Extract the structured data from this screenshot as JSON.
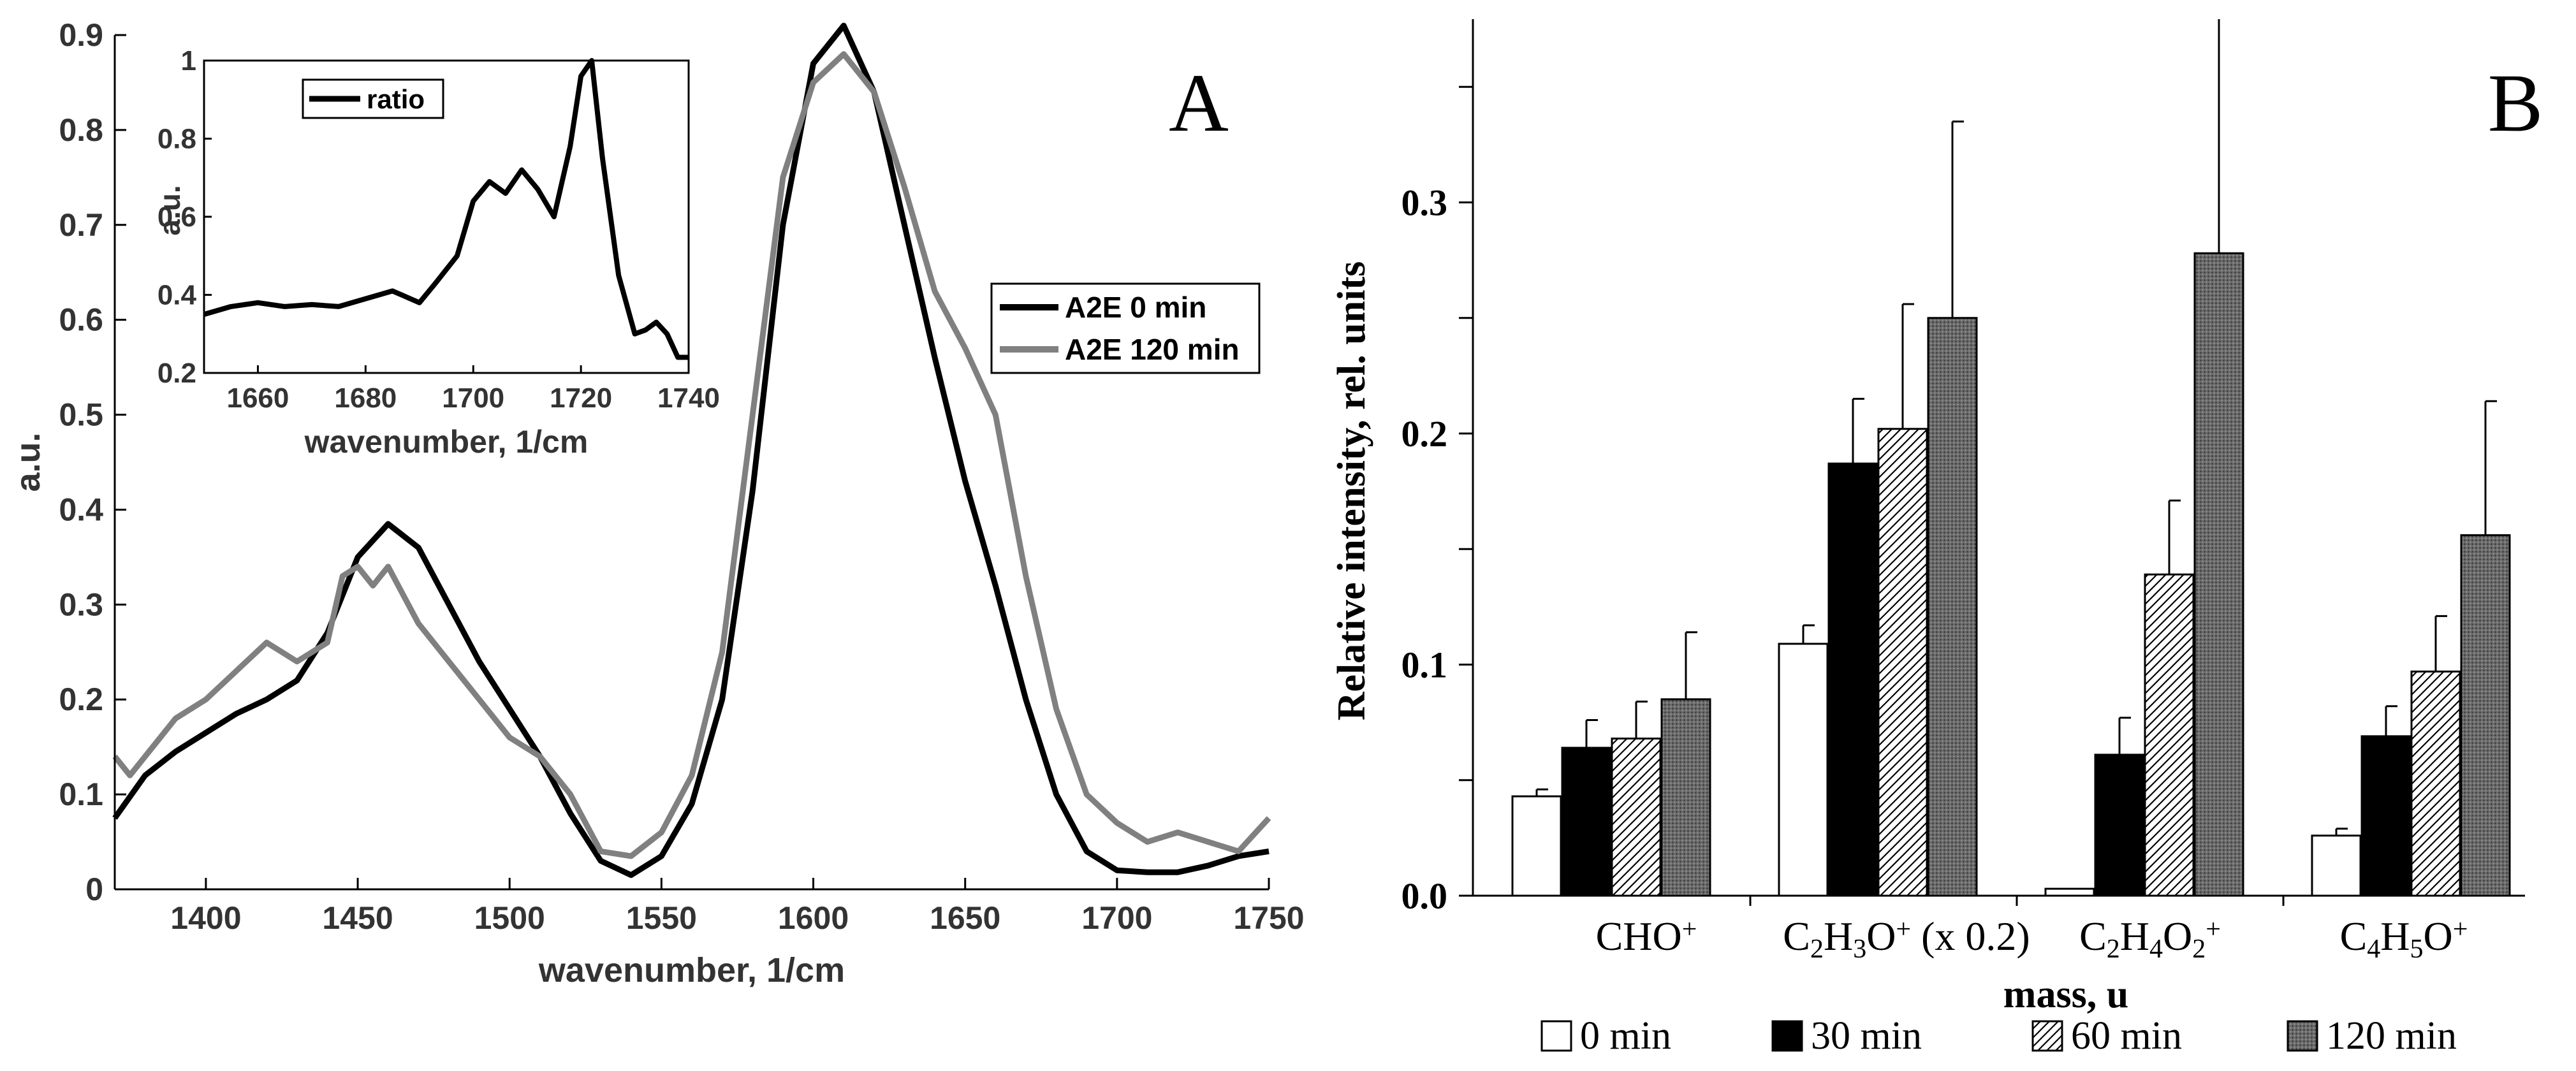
{
  "chart_data": [
    {
      "panel": "A",
      "type": "line",
      "panel_label": "A",
      "xlabel": "wavenumber, 1/cm",
      "ylabel": "a.u.",
      "xlim": [
        1370,
        1750
      ],
      "ylim": [
        0,
        0.9
      ],
      "xticks": [
        1400,
        1450,
        1500,
        1550,
        1600,
        1650,
        1700,
        1750
      ],
      "yticks": [
        0,
        0.1,
        0.2,
        0.3,
        0.4,
        0.5,
        0.6,
        0.7,
        0.8,
        0.9
      ],
      "xtick_labels": [
        "1400",
        "1450",
        "1500",
        "1550",
        "1600",
        "1650",
        "1700",
        "1750"
      ],
      "ytick_labels": [
        "0",
        "0.1",
        "0.2",
        "0.3",
        "0.4",
        "0.5",
        "0.6",
        "0.7",
        "0.8",
        "0.9"
      ],
      "legend_position": "right-middle",
      "series": [
        {
          "name": "A2E 0 min",
          "color": "#000000",
          "x": [
            1370,
            1380,
            1390,
            1400,
            1410,
            1420,
            1430,
            1440,
            1450,
            1460,
            1470,
            1480,
            1490,
            1500,
            1510,
            1520,
            1530,
            1540,
            1550,
            1560,
            1570,
            1580,
            1590,
            1600,
            1610,
            1620,
            1630,
            1640,
            1650,
            1660,
            1670,
            1680,
            1690,
            1700,
            1710,
            1720,
            1730,
            1740,
            1750
          ],
          "y": [
            0.075,
            0.12,
            0.145,
            0.165,
            0.185,
            0.2,
            0.22,
            0.27,
            0.35,
            0.385,
            0.36,
            0.3,
            0.24,
            0.19,
            0.14,
            0.08,
            0.03,
            0.015,
            0.035,
            0.09,
            0.2,
            0.42,
            0.7,
            0.87,
            0.91,
            0.84,
            0.7,
            0.56,
            0.43,
            0.32,
            0.2,
            0.1,
            0.04,
            0.02,
            0.018,
            0.018,
            0.025,
            0.035,
            0.04
          ]
        },
        {
          "name": "A2E 120 min",
          "color": "#808080",
          "x": [
            1370,
            1375,
            1380,
            1390,
            1400,
            1410,
            1420,
            1430,
            1440,
            1445,
            1450,
            1455,
            1460,
            1470,
            1480,
            1490,
            1500,
            1510,
            1520,
            1530,
            1540,
            1550,
            1560,
            1570,
            1580,
            1590,
            1600,
            1610,
            1620,
            1630,
            1640,
            1650,
            1660,
            1670,
            1680,
            1690,
            1700,
            1710,
            1720,
            1730,
            1740,
            1750
          ],
          "y": [
            0.14,
            0.12,
            0.14,
            0.18,
            0.2,
            0.23,
            0.26,
            0.24,
            0.26,
            0.33,
            0.34,
            0.32,
            0.34,
            0.28,
            0.24,
            0.2,
            0.16,
            0.14,
            0.1,
            0.04,
            0.035,
            0.06,
            0.12,
            0.25,
            0.5,
            0.75,
            0.85,
            0.88,
            0.84,
            0.74,
            0.63,
            0.57,
            0.5,
            0.33,
            0.19,
            0.1,
            0.07,
            0.05,
            0.06,
            0.05,
            0.04,
            0.075
          ]
        }
      ],
      "inset": {
        "type": "line",
        "xlabel": "wavenumber, 1/cm",
        "ylabel": "a.u.",
        "xlim": [
          1650,
          1740
        ],
        "ylim": [
          0.2,
          1.0
        ],
        "xticks": [
          1660,
          1680,
          1700,
          1720,
          1740
        ],
        "yticks": [
          0.2,
          0.4,
          0.6,
          0.8,
          1
        ],
        "xtick_labels": [
          "1660",
          "1680",
          "1700",
          "1720",
          "1740"
        ],
        "ytick_labels": [
          "0.2",
          "0.4",
          "0.6",
          "0.8",
          "1"
        ],
        "series": [
          {
            "name": "ratio",
            "color": "#000000",
            "x": [
              1650,
              1655,
              1660,
              1665,
              1670,
              1675,
              1680,
              1685,
              1690,
              1693,
              1697,
              1700,
              1703,
              1706,
              1709,
              1712,
              1715,
              1718,
              1720,
              1722,
              1724,
              1727,
              1730,
              1732,
              1734,
              1736,
              1738,
              1740
            ],
            "y": [
              0.35,
              0.37,
              0.38,
              0.37,
              0.375,
              0.37,
              0.39,
              0.41,
              0.38,
              0.43,
              0.5,
              0.64,
              0.69,
              0.66,
              0.72,
              0.67,
              0.6,
              0.78,
              0.96,
              1.0,
              0.75,
              0.45,
              0.3,
              0.31,
              0.33,
              0.3,
              0.24,
              0.24
            ]
          }
        ]
      }
    },
    {
      "panel": "B",
      "type": "bar",
      "panel_label": "B",
      "xlabel": "mass, u",
      "ylabel": "Relative intensity, rel. units",
      "ylim": [
        0,
        0.38
      ],
      "yticks": [
        0,
        0.1,
        0.2,
        0.3
      ],
      "ytick_labels": [
        "0.0",
        "0.1",
        "0.2",
        "0.3"
      ],
      "legend_position": "bottom",
      "categories": [
        {
          "base": "CHO",
          "parts": [
            {
              "t": "CHO"
            },
            {
              "t": "+",
              "pos": "sup"
            }
          ]
        },
        {
          "base": "C2H3O+ (x 0.2)",
          "parts": [
            {
              "t": "C"
            },
            {
              "t": "2",
              "pos": "sub"
            },
            {
              "t": "H"
            },
            {
              "t": "3",
              "pos": "sub"
            },
            {
              "t": "O"
            },
            {
              "t": "+",
              "pos": "sup"
            },
            {
              "t": " (x 0.2)"
            }
          ]
        },
        {
          "base": "C2H4O2+",
          "parts": [
            {
              "t": "C"
            },
            {
              "t": "2",
              "pos": "sub"
            },
            {
              "t": "H"
            },
            {
              "t": "4",
              "pos": "sub"
            },
            {
              "t": "O"
            },
            {
              "t": "2",
              "pos": "sub"
            },
            {
              "t": "+",
              "pos": "sup"
            }
          ]
        },
        {
          "base": "C4H5O+",
          "parts": [
            {
              "t": "C"
            },
            {
              "t": "4",
              "pos": "sub"
            },
            {
              "t": "H"
            },
            {
              "t": "5",
              "pos": "sub"
            },
            {
              "t": "O"
            },
            {
              "t": "+",
              "pos": "sup"
            }
          ]
        }
      ],
      "series": [
        {
          "name": "0 min",
          "fill": "white",
          "values": [
            0.043,
            0.109,
            0.003,
            0.026
          ],
          "errors": [
            0.003,
            0.008,
            0.0,
            0.003
          ]
        },
        {
          "name": "30 min",
          "fill": "black",
          "values": [
            0.064,
            0.187,
            0.061,
            0.069
          ],
          "errors": [
            0.012,
            0.028,
            0.016,
            0.013
          ]
        },
        {
          "name": "60 min",
          "fill": "hatch",
          "values": [
            0.068,
            0.202,
            0.139,
            0.097
          ],
          "errors": [
            0.016,
            0.054,
            0.032,
            0.024
          ]
        },
        {
          "name": "120 min",
          "fill": "dotted-gray",
          "values": [
            0.085,
            0.25,
            0.278,
            0.156
          ],
          "errors": [
            0.029,
            0.085,
            0.11,
            0.058
          ]
        }
      ]
    }
  ]
}
